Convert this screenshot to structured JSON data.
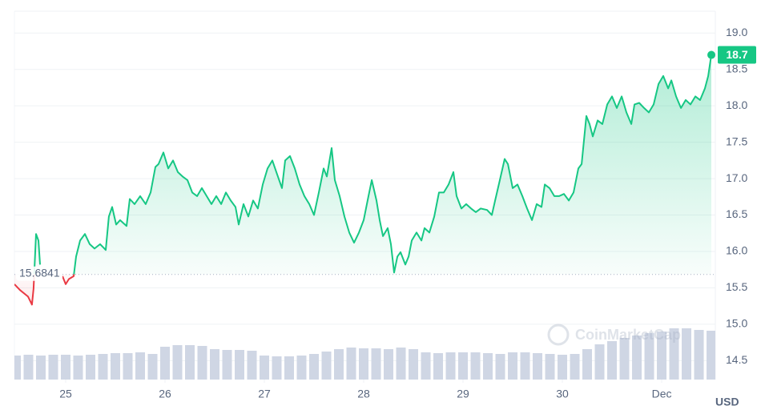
{
  "chart_data": {
    "type": "line",
    "x": [
      24.484,
      24.54,
      24.621,
      24.661,
      24.677,
      24.702,
      24.726,
      24.742,
      24.855,
      24.968,
      25.0,
      25.032,
      25.081,
      25.105,
      25.145,
      25.194,
      25.242,
      25.29,
      25.347,
      25.403,
      25.435,
      25.468,
      25.508,
      25.548,
      25.613,
      25.645,
      25.694,
      25.75,
      25.806,
      25.855,
      25.903,
      25.935,
      25.984,
      26.032,
      26.081,
      26.129,
      26.177,
      26.226,
      26.274,
      26.323,
      26.371,
      26.419,
      26.468,
      26.516,
      26.565,
      26.613,
      26.661,
      26.71,
      26.742,
      26.79,
      26.839,
      26.887,
      26.935,
      26.984,
      27.032,
      27.081,
      27.121,
      27.177,
      27.21,
      27.258,
      27.306,
      27.355,
      27.403,
      27.452,
      27.5,
      27.548,
      27.597,
      27.629,
      27.677,
      27.71,
      27.758,
      27.806,
      27.855,
      27.903,
      27.952,
      28.0,
      28.048,
      28.081,
      28.129,
      28.161,
      28.194,
      28.242,
      28.274,
      28.306,
      28.339,
      28.371,
      28.419,
      28.452,
      28.484,
      28.532,
      28.581,
      28.613,
      28.661,
      28.71,
      28.758,
      28.806,
      28.855,
      28.903,
      28.935,
      28.984,
      29.032,
      29.081,
      29.129,
      29.177,
      29.242,
      29.29,
      29.323,
      29.371,
      29.419,
      29.452,
      29.5,
      29.548,
      29.597,
      29.645,
      29.694,
      29.742,
      29.79,
      29.823,
      29.871,
      29.919,
      29.968,
      30.016,
      30.065,
      30.113,
      30.161,
      30.194,
      30.242,
      30.274,
      30.306,
      30.355,
      30.403,
      30.452,
      30.5,
      30.548,
      30.597,
      30.645,
      30.694,
      30.726,
      30.774,
      30.823,
      30.871,
      30.919,
      30.968,
      31.016,
      31.065,
      31.097,
      31.145,
      31.194,
      31.242,
      31.29,
      31.339,
      31.387,
      31.435,
      31.468,
      31.5
    ],
    "series": [
      {
        "color": "#16c784",
        "values": [
          15.55,
          15.47,
          15.38,
          15.27,
          15.49,
          16.24,
          16.15,
          15.82,
          null,
          15.66,
          15.55,
          15.62,
          15.66,
          15.93,
          16.15,
          16.24,
          16.1,
          16.04,
          16.1,
          16.02,
          16.48,
          16.61,
          16.37,
          16.43,
          16.35,
          16.72,
          16.65,
          16.76,
          16.65,
          16.81,
          17.16,
          17.2,
          17.36,
          17.14,
          17.25,
          17.09,
          17.03,
          16.98,
          16.81,
          16.76,
          16.87,
          16.76,
          16.65,
          16.76,
          16.65,
          16.81,
          16.7,
          16.61,
          16.37,
          16.65,
          16.48,
          16.7,
          16.59,
          16.92,
          17.14,
          17.25,
          17.09,
          16.87,
          17.25,
          17.31,
          17.14,
          16.92,
          16.76,
          16.65,
          16.5,
          16.81,
          17.14,
          17.03,
          17.42,
          16.98,
          16.76,
          16.48,
          16.26,
          16.12,
          16.26,
          16.43,
          16.76,
          16.98,
          16.7,
          16.43,
          16.21,
          16.32,
          16.1,
          15.71,
          15.93,
          15.99,
          15.82,
          15.93,
          16.15,
          16.26,
          16.15,
          16.32,
          16.26,
          16.48,
          16.81,
          16.81,
          16.92,
          17.09,
          16.76,
          16.59,
          16.65,
          16.59,
          16.54,
          16.59,
          16.57,
          16.5,
          16.7,
          16.98,
          17.27,
          17.2,
          16.87,
          16.92,
          16.76,
          16.59,
          16.43,
          16.65,
          16.61,
          16.92,
          16.87,
          16.76,
          16.76,
          16.79,
          16.7,
          16.81,
          17.14,
          17.2,
          17.86,
          17.75,
          17.58,
          17.8,
          17.75,
          18.02,
          18.13,
          17.97,
          18.13,
          17.91,
          17.75,
          18.02,
          18.04,
          17.97,
          17.91,
          18.02,
          18.3,
          18.41,
          18.24,
          18.35,
          18.13,
          17.97,
          18.08,
          18.02,
          18.13,
          18.08,
          18.24,
          18.41,
          18.7
        ]
      }
    ],
    "down_color": "#ea3943",
    "baseline": 15.6841,
    "xlim": [
      24.484,
      31.54
    ],
    "xticks": [
      25,
      26,
      27,
      28,
      29,
      30,
      {
        "value": 31,
        "label": "Dec"
      }
    ],
    "ylim": [
      14.24,
      19.3
    ],
    "yticks": [
      14.5,
      {
        "value": 15,
        "label": "15.0"
      },
      15.5,
      {
        "value": 16,
        "label": "16.0"
      },
      16.5,
      {
        "value": 17,
        "label": "17.0"
      },
      17.5,
      {
        "value": 18,
        "label": "18.0"
      },
      18.5,
      {
        "value": 19,
        "label": "19.0"
      }
    ],
    "grid": true,
    "currency": "USD",
    "watermark": "CoinMarketCap",
    "volume": {
      "color": "#cfd6e4",
      "ylim": [
        0,
        100
      ],
      "x": [
        24.5,
        24.625,
        24.75,
        24.875,
        25.0,
        25.125,
        25.25,
        25.375,
        25.5,
        25.625,
        25.75,
        25.875,
        26.0,
        26.125,
        26.25,
        26.375,
        26.5,
        26.625,
        26.75,
        26.875,
        27.0,
        27.125,
        27.25,
        27.375,
        27.5,
        27.625,
        27.75,
        27.875,
        28.0,
        28.125,
        28.25,
        28.375,
        28.5,
        28.625,
        28.75,
        28.875,
        29.0,
        29.125,
        29.25,
        29.375,
        29.5,
        29.625,
        29.75,
        29.875,
        30.0,
        30.125,
        30.25,
        30.375,
        30.5,
        30.625,
        30.75,
        30.875,
        31.0,
        31.125,
        31.25,
        31.375,
        31.5
      ],
      "values": [
        30,
        31,
        30,
        31,
        31,
        30,
        31,
        32,
        33,
        33,
        34,
        32,
        41,
        43,
        43,
        42,
        38,
        37,
        37,
        36,
        30,
        29,
        29,
        30,
        32,
        35,
        38,
        40,
        39,
        39,
        38,
        40,
        38,
        34,
        33,
        34,
        34,
        34,
        33,
        32,
        34,
        34,
        33,
        32,
        31,
        32,
        38,
        44,
        48,
        52,
        55,
        58,
        60,
        64,
        64,
        62,
        61
      ]
    }
  }
}
